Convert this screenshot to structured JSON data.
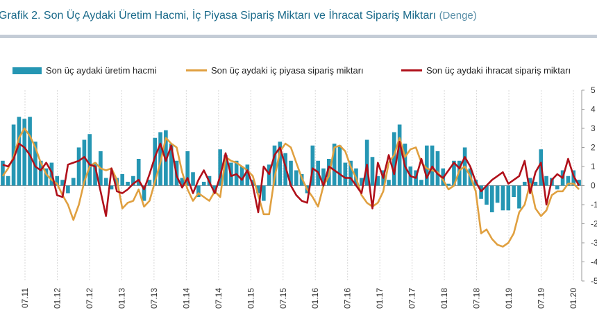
{
  "header": {
    "title": "Grafik 2. Son Üç Aydaki Üretim Hacmi, İç Piyasa Sipariş Miktarı ve İhracat Sipariş Miktarı",
    "subtitle": "(Denge)"
  },
  "colors": {
    "bar": "#2596b3",
    "domestic": "#e0a040",
    "export": "#b0101a",
    "accent": "#1a6a8a"
  },
  "chart_data": {
    "type": "bar",
    "title": "Grafik 2. Son Üç Aydaki Üretim Hacmi, İç Piyasa Sipariş Miktarı ve İhracat Sipariş Miktarı",
    "ylim": [
      -5,
      5
    ],
    "yticks": [
      "5",
      "4",
      "3",
      "2",
      "1",
      "0",
      "-1",
      "-2",
      "-3",
      "-4",
      "-5"
    ],
    "xtick_labels": [
      "07.11",
      "01.12",
      "07.12",
      "01.13",
      "07.13",
      "01.14",
      "07.14",
      "01.15",
      "07.15",
      "01.16",
      "07.16",
      "01.17",
      "07.17",
      "01.18",
      "07.18",
      "01.19",
      "07.19",
      "01.20"
    ],
    "grid": "vertical",
    "legend_position": "top",
    "series": [
      {
        "name": "Son üç aydaki üretim hacmi",
        "kind": "bar",
        "values": [
          1.3,
          0.5,
          3.2,
          3.6,
          3.5,
          3.6,
          2.3,
          1.3,
          0.9,
          1.2,
          0.5,
          0.3,
          -0.4,
          0.4,
          2.0,
          2.4,
          2.7,
          1.2,
          1.8,
          0.4,
          -0.2,
          0.4,
          0.6,
          0.2,
          0.5,
          1.4,
          -0.8,
          0.3,
          2.5,
          2.8,
          2.9,
          2.2,
          1.3,
          0.4,
          1.8,
          0.7,
          -0.6,
          0.2,
          0.5,
          -0.4,
          1.9,
          1.6,
          1.2,
          1.3,
          1.0,
          1.1,
          0.3,
          -0.4,
          -0.8,
          1.1,
          2.1,
          2.3,
          1.7,
          1.3,
          0.8,
          0.6,
          -0.4,
          2.1,
          1.3,
          0.9,
          1.4,
          2.2,
          2.1,
          1.2,
          1.3,
          0.9,
          0.4,
          2.4,
          1.5,
          0.5,
          0.8,
          0.3,
          2.8,
          3.2,
          2.2,
          1.0,
          0.8,
          0.3,
          2.1,
          2.1,
          1.8,
          0.9,
          0.1,
          1.3,
          1.3,
          2.0,
          0.9,
          0.3,
          -0.7,
          -1.0,
          -1.4,
          -0.9,
          -1.3,
          -1.3,
          -0.6,
          -1.2,
          0.2,
          0.4,
          0.2,
          1.9,
          0.5,
          0.4,
          -0.2,
          0.8,
          0.5,
          0.8,
          0.3
        ]
      },
      {
        "name": "Son üç aydaki iç piyasa sipariş miktarı",
        "kind": "line",
        "values": [
          0.5,
          0.9,
          1.5,
          2.5,
          3.0,
          2.6,
          2.0,
          1.2,
          0.6,
          0.3,
          0.1,
          -0.5,
          -1.0,
          -1.8,
          -1.0,
          0.2,
          1.0,
          1.2,
          0.9,
          0.8,
          0.9,
          0.3,
          -1.2,
          -0.9,
          -0.8,
          -0.2,
          -1.1,
          -0.8,
          0.2,
          1.2,
          2.5,
          2.2,
          2.0,
          0.7,
          -0.2,
          -0.8,
          -0.4,
          -0.6,
          -0.8,
          -0.3,
          -0.6,
          1.5,
          1.3,
          1.2,
          1.0,
          0.8,
          0.5,
          -0.5,
          -1.5,
          -1.5,
          0.4,
          1.8,
          2.2,
          2.0,
          1.2,
          0.4,
          -0.2,
          -0.6,
          -1.1,
          0.0,
          0.5,
          2.0,
          2.1,
          1.8,
          1.0,
          0.4,
          -0.5,
          -0.9,
          -1.1,
          -0.9,
          -0.3,
          1.2,
          1.6,
          2.5,
          1.5,
          1.9,
          2.0,
          1.2,
          0.9,
          0.8,
          0.7,
          0.3,
          -0.2,
          0.0,
          0.8,
          1.0,
          0.5,
          -0.3,
          -2.5,
          -2.3,
          -2.8,
          -3.1,
          -3.2,
          -3.0,
          -2.5,
          -1.4,
          -1.0,
          0.1,
          -1.2,
          -1.6,
          -1.3,
          -0.5,
          -0.3,
          -0.3,
          0.1,
          0.1,
          -0.2
        ]
      },
      {
        "name": "Son üç aydaki ihracat sipariş miktarı",
        "kind": "line",
        "values": [
          1.1,
          1.0,
          1.4,
          2.2,
          2.0,
          1.6,
          1.0,
          0.8,
          1.2,
          0.7,
          -0.5,
          -0.6,
          1.1,
          1.2,
          1.3,
          1.5,
          1.1,
          1.0,
          -0.3,
          -1.6,
          0.9,
          -0.3,
          -0.4,
          -0.2,
          0.1,
          0.3,
          -0.2,
          0.6,
          1.5,
          2.2,
          1.3,
          2.1,
          0.5,
          -0.1,
          0.4,
          -0.4,
          0.3,
          0.8,
          0.2,
          -0.4,
          0.5,
          1.7,
          0.5,
          0.6,
          0.3,
          0.8,
          0.0,
          -1.4,
          1.0,
          0.6,
          1.6,
          2.0,
          1.0,
          0.0,
          -0.5,
          -0.8,
          -0.9,
          0.9,
          0.7,
          0.0,
          1.0,
          0.8,
          0.6,
          0.4,
          0.4,
          0.0,
          -0.4,
          1.1,
          -1.2,
          1.2,
          0.4,
          1.6,
          0.6,
          2.3,
          1.0,
          0.5,
          0.4,
          1.4,
          0.4,
          1.0,
          0.6,
          0.4,
          0.8,
          1.2,
          0.9,
          1.5,
          1.0,
          0.2,
          -0.3,
          0.0,
          0.3,
          0.5,
          0.7,
          0.1,
          0.3,
          0.5,
          1.3,
          -0.4,
          0.7,
          1.2,
          -1.0,
          0.3,
          0.6,
          0.4,
          1.4,
          0.5,
          0.0
        ]
      }
    ]
  }
}
